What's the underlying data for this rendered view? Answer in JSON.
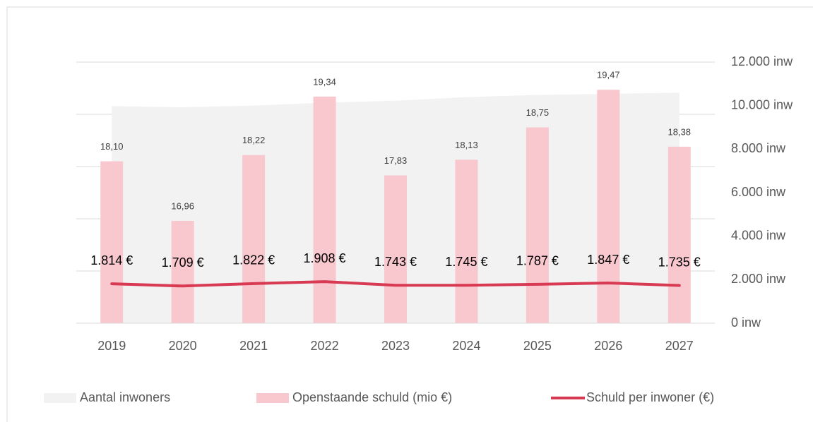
{
  "chart_data": {
    "type": "combo",
    "categories": [
      "2019",
      "2020",
      "2021",
      "2022",
      "2023",
      "2024",
      "2025",
      "2026",
      "2027"
    ],
    "series": [
      {
        "name": "Aantal inwoners",
        "type": "area",
        "axis": "y2",
        "color": "#f2f2f2",
        "values": [
          9978,
          9924,
          10000,
          10136,
          10229,
          10390,
          10492,
          10541,
          10594
        ]
      },
      {
        "name": "Openstaande schuld (mio €)",
        "type": "bar",
        "color": "#f8c8ce",
        "values": [
          18.1,
          16.96,
          18.22,
          19.34,
          17.83,
          18.13,
          18.75,
          19.47,
          18.38
        ],
        "value_labels": [
          "18,10",
          "16,96",
          "18,22",
          "19,34",
          "17,83",
          "18,13",
          "18,75",
          "19,47",
          "18,38"
        ]
      },
      {
        "name": "Schuld per inwoner (€)",
        "type": "line",
        "axis": "y2",
        "color": "#d83a53",
        "values": [
          1814,
          1709,
          1822,
          1908,
          1743,
          1745,
          1787,
          1847,
          1735
        ],
        "value_labels": [
          "1.814 €",
          "1.709 €",
          "1.822 €",
          "1.908 €",
          "1.743 €",
          "1.745 €",
          "1.787 €",
          "1.847 €",
          "1.735 €"
        ]
      }
    ],
    "ylim": [
      15,
      20
    ],
    "yticks": [
      15,
      16,
      17,
      18,
      19,
      20
    ],
    "y2lim": [
      0,
      12000
    ],
    "y2ticks": [
      {
        "value": 0,
        "label": "0 inw"
      },
      {
        "value": 2000,
        "label": "2.000 inw"
      },
      {
        "value": 4000,
        "label": "4.000 inw"
      },
      {
        "value": 6000,
        "label": "6.000 inw"
      },
      {
        "value": 8000,
        "label": "8.000 inw"
      },
      {
        "value": 10000,
        "label": "10.000 inw"
      },
      {
        "value": 12000,
        "label": "12.000 inw"
      }
    ],
    "grid": true,
    "legend": "bottom"
  }
}
